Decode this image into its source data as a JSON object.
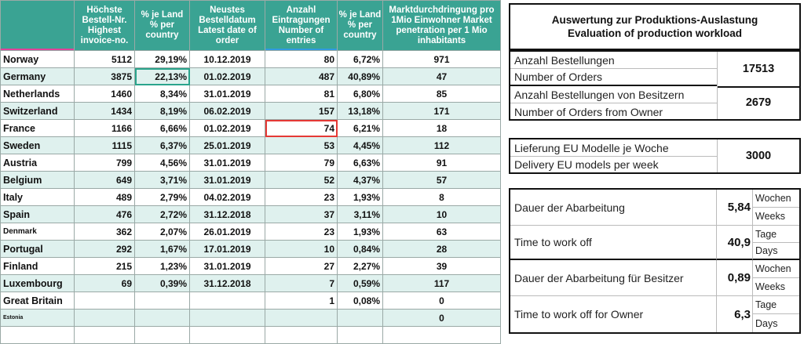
{
  "table": {
    "headers": [
      "",
      "Höchste Bestell-Nr. Highest invoice-no.",
      "% je Land % per country",
      "Neustes Bestelldatum Latest date of order",
      "Anzahl Eintragungen Number of entries",
      "% je Land % per country",
      "Marktdurchdringung pro 1Mio Einwohner Market penetration per 1 Mio inhabitants"
    ],
    "rows": [
      {
        "country": "Norway",
        "invoice": "5112",
        "pct": "29,19%",
        "date": "10.12.2019",
        "entries": "80",
        "pct2": "6,72%",
        "market": "971"
      },
      {
        "country": "Germany",
        "invoice": "3875",
        "pct": "22,13%",
        "date": "01.02.2019",
        "entries": "487",
        "pct2": "40,89%",
        "market": "47"
      },
      {
        "country": "Netherlands",
        "invoice": "1460",
        "pct": "8,34%",
        "date": "31.01.2019",
        "entries": "81",
        "pct2": "6,80%",
        "market": "85"
      },
      {
        "country": "Switzerland",
        "invoice": "1434",
        "pct": "8,19%",
        "date": "06.02.2019",
        "entries": "157",
        "pct2": "13,18%",
        "market": "171"
      },
      {
        "country": "France",
        "invoice": "1166",
        "pct": "6,66%",
        "date": "01.02.2019",
        "entries": "74",
        "pct2": "6,21%",
        "market": "18"
      },
      {
        "country": "Sweden",
        "invoice": "1115",
        "pct": "6,37%",
        "date": "25.01.2019",
        "entries": "53",
        "pct2": "4,45%",
        "market": "112"
      },
      {
        "country": "Austria",
        "invoice": "799",
        "pct": "4,56%",
        "date": "31.01.2019",
        "entries": "79",
        "pct2": "6,63%",
        "market": "91"
      },
      {
        "country": "Belgium",
        "invoice": "649",
        "pct": "3,71%",
        "date": "31.01.2019",
        "entries": "52",
        "pct2": "4,37%",
        "market": "57"
      },
      {
        "country": "Italy",
        "invoice": "489",
        "pct": "2,79%",
        "date": "04.02.2019",
        "entries": "23",
        "pct2": "1,93%",
        "market": "8"
      },
      {
        "country": "Spain",
        "invoice": "476",
        "pct": "2,72%",
        "date": "31.12.2018",
        "entries": "37",
        "pct2": "3,11%",
        "market": "10"
      },
      {
        "country": "Denmark",
        "invoice": "362",
        "pct": "2,07%",
        "date": "26.01.2019",
        "entries": "23",
        "pct2": "1,93%",
        "market": "63"
      },
      {
        "country": "Portugal",
        "invoice": "292",
        "pct": "1,67%",
        "date": "17.01.2019",
        "entries": "10",
        "pct2": "0,84%",
        "market": "28"
      },
      {
        "country": "Finland",
        "invoice": "215",
        "pct": "1,23%",
        "date": "31.01.2019",
        "entries": "27",
        "pct2": "2,27%",
        "market": "39"
      },
      {
        "country": "Luxembourg",
        "invoice": "69",
        "pct": "0,39%",
        "date": "31.12.2018",
        "entries": "7",
        "pct2": "0,59%",
        "market": "117"
      },
      {
        "country": "Great Britain",
        "invoice": "",
        "pct": "",
        "date": "",
        "entries": "1",
        "pct2": "0,08%",
        "market": "0"
      },
      {
        "country": "Estonia",
        "invoice": "",
        "pct": "",
        "date": "",
        "entries": "",
        "pct2": "",
        "market": "0"
      },
      {
        "country": "",
        "invoice": "",
        "pct": "",
        "date": "",
        "entries": "",
        "pct2": "",
        "market": ""
      }
    ]
  },
  "panel": {
    "title_de": "Auswertung zur Produktions-Auslastung",
    "title_en": "Evaluation of production workload",
    "orders_de": "Anzahl Bestellungen",
    "orders_en": "Number of Orders",
    "orders_val": "17513",
    "owner_orders_de": "Anzahl Bestellungen von Besitzern",
    "owner_orders_en": "Number of Orders from Owner",
    "owner_orders_val": "2679",
    "delivery_de": "Lieferung EU Modelle je Woche",
    "delivery_en": "Delivery EU models per week",
    "delivery_val": "3000",
    "dur_de": "Dauer der Abarbeitung",
    "dur_weeks": "5,84",
    "wochen": "Wochen",
    "weeks": "Weeks",
    "dur_en": "Time to work off",
    "dur_days": "40,9",
    "tage": "Tage",
    "days": "Days",
    "own_dur_de": "Dauer der Abarbeitung für Besitzer",
    "own_dur_weeks": "0,89",
    "own_dur_en": "Time to work off for Owner",
    "own_dur_days": "6,3"
  }
}
